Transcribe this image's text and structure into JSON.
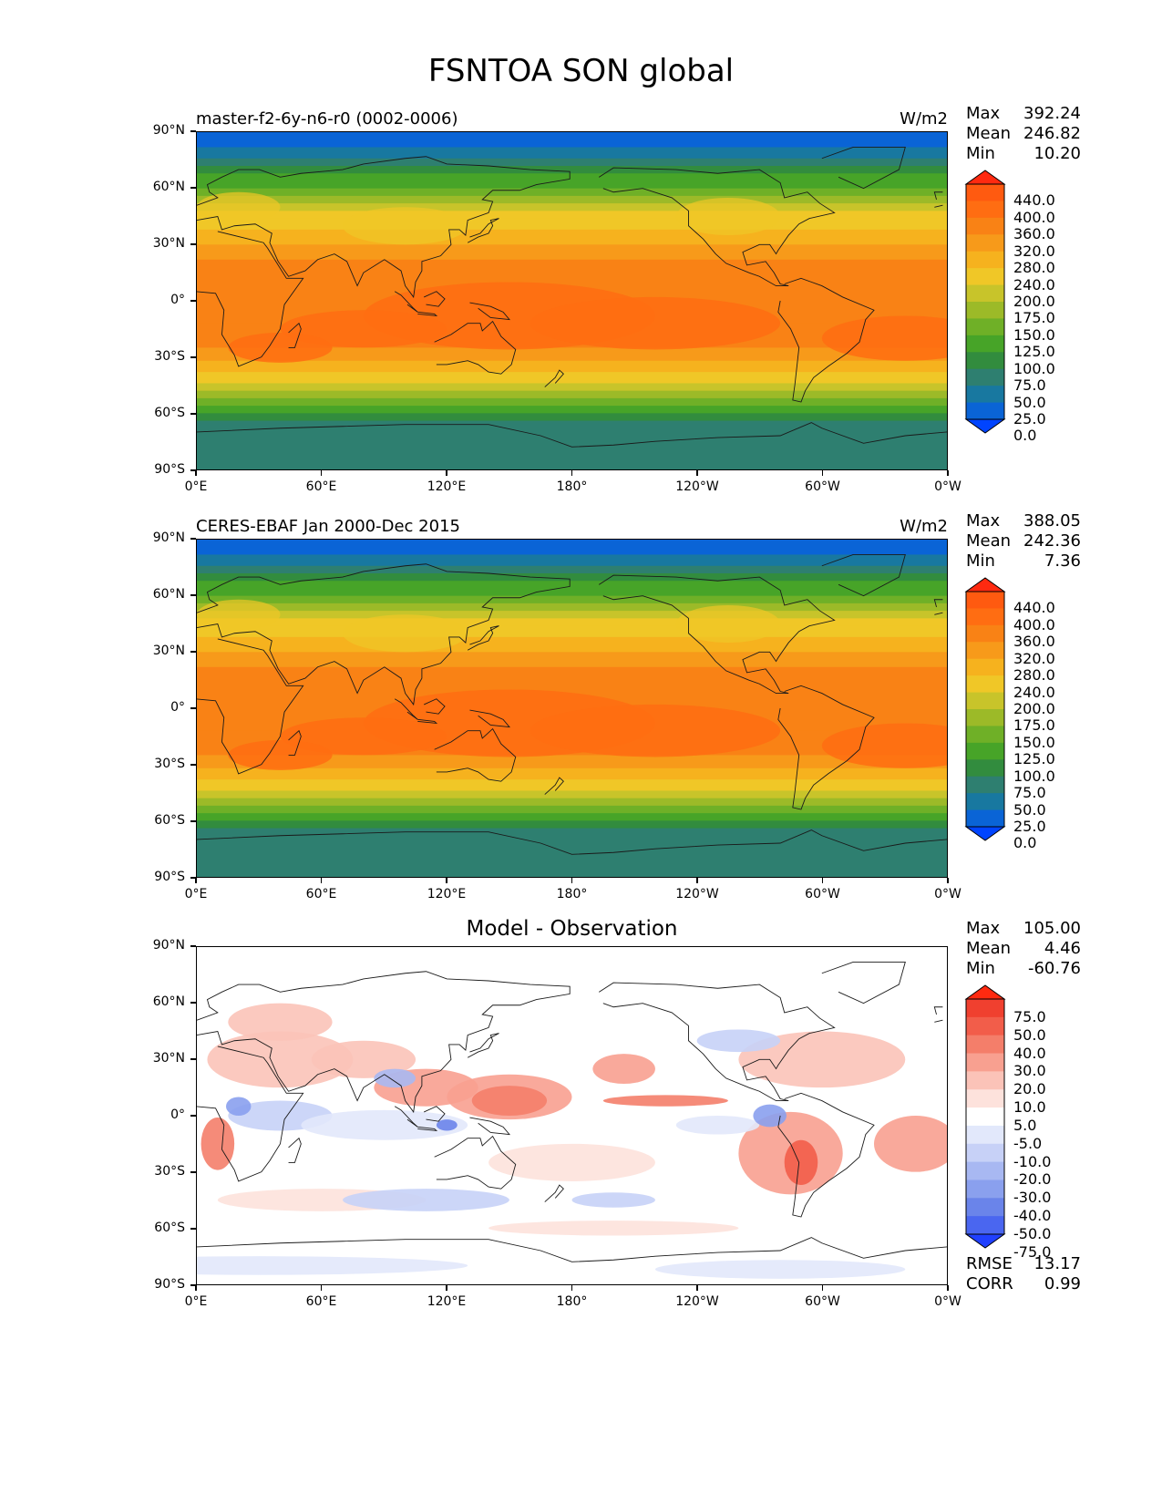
{
  "figure": {
    "title": "FSNTOA SON global",
    "colors": {
      "outline": "#000000",
      "coast": "#1a1a1a"
    }
  },
  "axes": {
    "lat_ticks": [
      "90°N",
      "60°N",
      "30°N",
      "0°",
      "30°S",
      "60°S",
      "90°S"
    ],
    "lon_ticks": [
      "0°E",
      "60°E",
      "120°E",
      "180°",
      "120°W",
      "60°W",
      "0°W"
    ]
  },
  "panels": [
    {
      "id": "model",
      "title": "master-f2-6y-n6-r0 (0002-0006)",
      "title_position": "left",
      "units": "W/m2",
      "stats": {
        "max_label": "Max",
        "max": "392.24",
        "mean_label": "Mean",
        "mean": "246.82",
        "min_label": "Min",
        "min": "10.20"
      },
      "colorbar": {
        "labels": [
          "440.0",
          "400.0",
          "360.0",
          "320.0",
          "280.0",
          "240.0",
          "200.0",
          "175.0",
          "150.0",
          "125.0",
          "100.0",
          "75.0",
          "50.0",
          "25.0",
          "0.0"
        ],
        "colors": [
          "#ff2a10",
          "#ff5a10",
          "#ff6d12",
          "#f98215",
          "#f79a1a",
          "#f6b21e",
          "#f0c727",
          "#c8c42a",
          "#9cba28",
          "#6fb027",
          "#47a428",
          "#328c3e",
          "#2e7f70",
          "#1878a0",
          "#0a64d6",
          "#0044ff"
        ]
      },
      "field": "absolute"
    },
    {
      "id": "obs",
      "title": "CERES-EBAF Jan 2000-Dec 2015",
      "title_position": "left",
      "units": "W/m2",
      "stats": {
        "max_label": "Max",
        "max": "388.05",
        "mean_label": "Mean",
        "mean": "242.36",
        "min_label": "Min",
        "min": "7.36"
      },
      "colorbar": {
        "labels": [
          "440.0",
          "400.0",
          "360.0",
          "320.0",
          "280.0",
          "240.0",
          "200.0",
          "175.0",
          "150.0",
          "125.0",
          "100.0",
          "75.0",
          "50.0",
          "25.0",
          "0.0"
        ],
        "colors": [
          "#ff2a10",
          "#ff5a10",
          "#ff6d12",
          "#f98215",
          "#f79a1a",
          "#f6b21e",
          "#f0c727",
          "#c8c42a",
          "#9cba28",
          "#6fb027",
          "#47a428",
          "#328c3e",
          "#2e7f70",
          "#1878a0",
          "#0a64d6",
          "#0044ff"
        ]
      },
      "field": "absolute"
    },
    {
      "id": "diff",
      "title": "Model - Observation",
      "title_position": "center",
      "units": "",
      "stats": {
        "max_label": "Max",
        "max": "105.00",
        "mean_label": "Mean",
        "mean": "4.46",
        "min_label": "Min",
        "min": "-60.76"
      },
      "colorbar": {
        "labels": [
          "75.0",
          "50.0",
          "40.0",
          "30.0",
          "20.0",
          "10.0",
          "5.0",
          "-5.0",
          "-10.0",
          "-20.0",
          "-30.0",
          "-40.0",
          "-50.0",
          "-75.0"
        ],
        "colors": [
          "#ff2a10",
          "#f0402f",
          "#f25d4a",
          "#f47e6a",
          "#f8a090",
          "#fbc3b8",
          "#fde2dc",
          "#ffffff",
          "#e2e8fb",
          "#c7d1f7",
          "#a8b8f2",
          "#8aa0ee",
          "#6a84ea",
          "#4a66f0",
          "#2040ff"
        ]
      },
      "metrics": {
        "rmse_label": "RMSE",
        "rmse": "13.17",
        "corr_label": "CORR",
        "corr": "0.99"
      },
      "field": "difference"
    }
  ]
}
